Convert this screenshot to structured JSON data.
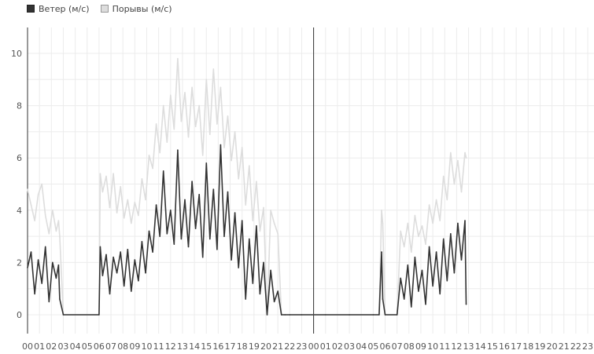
{
  "legend": {
    "wind": "Ветер (м/с)",
    "gusts": "Порывы (м/с)"
  },
  "colors": {
    "wind": "#333333",
    "gusts": "#dddddd",
    "grid": "#ececec",
    "axis": "#333333"
  },
  "chart_data": {
    "type": "line",
    "title": "",
    "xlabel": "",
    "ylabel": "",
    "ylim": [
      0,
      11
    ],
    "yticks": [
      0,
      2,
      4,
      6,
      8,
      10
    ],
    "x_tick_labels": [
      "00",
      "01",
      "02",
      "03",
      "04",
      "05",
      "06",
      "07",
      "08",
      "09",
      "10",
      "11",
      "12",
      "13",
      "14",
      "15",
      "16",
      "17",
      "18",
      "19",
      "20",
      "21",
      "22",
      "23",
      "00",
      "01",
      "02",
      "03",
      "04",
      "05",
      "06",
      "07",
      "08",
      "09",
      "10",
      "11",
      "12",
      "13",
      "14",
      "15",
      "16",
      "17",
      "18",
      "19",
      "20",
      "21",
      "22",
      "23"
    ],
    "x_unit": "hours from start of day 1",
    "grid": true,
    "legend_position": "top-left",
    "series": [
      {
        "name": "Ветер (м/с)",
        "x": [
          0,
          0.3,
          0.6,
          0.9,
          1.2,
          1.5,
          1.8,
          2.1,
          2.4,
          2.6,
          2.7,
          3.0,
          6.0,
          6.1,
          6.3,
          6.6,
          6.9,
          7.2,
          7.5,
          7.8,
          8.1,
          8.4,
          8.7,
          9.0,
          9.3,
          9.6,
          9.9,
          10.2,
          10.5,
          10.8,
          11.1,
          11.4,
          11.7,
          12.0,
          12.3,
          12.6,
          12.9,
          13.2,
          13.5,
          13.8,
          14.1,
          14.4,
          14.7,
          15.0,
          15.3,
          15.6,
          15.9,
          16.2,
          16.5,
          16.8,
          17.1,
          17.4,
          17.7,
          18.0,
          18.3,
          18.6,
          18.9,
          19.2,
          19.5,
          19.8,
          20.1,
          20.4,
          20.7,
          21.0,
          21.3,
          21.6,
          22.0,
          23.0,
          24.0,
          25.0,
          27.0,
          29.0,
          29.5,
          29.7,
          29.8,
          30.0,
          31.0,
          31.3,
          31.6,
          31.9,
          32.2,
          32.5,
          32.8,
          33.1,
          33.4,
          33.7,
          34.0,
          34.3,
          34.6,
          34.9,
          35.2,
          35.5,
          35.8,
          36.1,
          36.4,
          36.7,
          36.8
        ],
        "values": [
          1.8,
          2.4,
          0.8,
          2.1,
          1.2,
          2.6,
          0.5,
          2.0,
          1.4,
          1.9,
          0.6,
          0,
          0,
          2.6,
          1.5,
          2.3,
          0.8,
          2.2,
          1.6,
          2.4,
          1.1,
          2.5,
          0.9,
          2.1,
          1.3,
          2.8,
          1.6,
          3.2,
          2.4,
          4.2,
          3.0,
          5.5,
          3.1,
          4.0,
          2.7,
          6.3,
          2.9,
          4.4,
          2.6,
          5.1,
          3.3,
          4.6,
          2.2,
          5.8,
          2.9,
          4.8,
          2.5,
          6.5,
          3.0,
          4.7,
          2.1,
          3.9,
          1.8,
          3.6,
          0.6,
          2.9,
          1.2,
          3.4,
          0.8,
          2.0,
          0,
          1.7,
          0.5,
          0.9,
          0,
          0,
          0,
          0,
          0,
          0,
          0,
          0,
          0,
          2.4,
          0.6,
          0,
          0,
          1.4,
          0.6,
          1.9,
          0.3,
          2.2,
          0.9,
          1.7,
          0.4,
          2.6,
          1.1,
          2.4,
          0.8,
          2.9,
          1.3,
          3.1,
          1.6,
          3.5,
          2.1,
          3.6,
          0.4
        ]
      },
      {
        "name": "Порывы (м/с)",
        "x": [
          0,
          0.3,
          0.6,
          0.9,
          1.2,
          1.5,
          1.8,
          2.1,
          2.4,
          2.6,
          2.7,
          3.0,
          6.0,
          6.1,
          6.3,
          6.6,
          6.9,
          7.2,
          7.5,
          7.8,
          8.1,
          8.4,
          8.7,
          9.0,
          9.3,
          9.6,
          9.9,
          10.2,
          10.5,
          10.8,
          11.1,
          11.4,
          11.7,
          12.0,
          12.3,
          12.6,
          12.9,
          13.2,
          13.5,
          13.8,
          14.1,
          14.4,
          14.7,
          15.0,
          15.3,
          15.6,
          15.9,
          16.2,
          16.5,
          16.8,
          17.1,
          17.4,
          17.7,
          18.0,
          18.3,
          18.6,
          18.9,
          19.2,
          19.5,
          19.8,
          20.1,
          20.4,
          20.7,
          21.0,
          21.3,
          21.6,
          22.0,
          23.0,
          24.0,
          25.0,
          27.0,
          29.0,
          29.5,
          29.7,
          29.8,
          30.0,
          31.0,
          31.3,
          31.6,
          31.9,
          32.2,
          32.5,
          32.8,
          33.1,
          33.4,
          33.7,
          34.0,
          34.3,
          34.6,
          34.9,
          35.2,
          35.5,
          35.8,
          36.1,
          36.4,
          36.7,
          36.8
        ],
        "values": [
          4.8,
          4.2,
          3.6,
          4.6,
          5.0,
          3.8,
          3.1,
          4.0,
          3.2,
          3.6,
          3.0,
          0,
          0,
          5.4,
          4.7,
          5.3,
          4.1,
          5.4,
          3.9,
          4.9,
          3.7,
          4.4,
          3.5,
          4.3,
          3.8,
          5.2,
          4.4,
          6.1,
          5.6,
          7.3,
          6.2,
          8.0,
          6.6,
          8.4,
          7.1,
          9.8,
          7.4,
          8.5,
          6.8,
          8.7,
          7.2,
          8.0,
          6.1,
          9.0,
          6.9,
          9.4,
          7.3,
          8.7,
          6.4,
          7.6,
          5.9,
          7.0,
          5.2,
          6.4,
          4.2,
          5.7,
          3.6,
          5.1,
          3.2,
          4.1,
          0,
          4.0,
          3.5,
          3.1,
          0,
          0,
          0,
          0,
          0,
          0,
          0,
          0,
          0,
          4.0,
          3.5,
          0,
          0,
          3.2,
          2.6,
          3.5,
          2.4,
          3.8,
          3.0,
          3.4,
          2.7,
          4.2,
          3.5,
          4.4,
          3.6,
          5.3,
          4.4,
          6.2,
          5.0,
          5.9,
          4.7,
          6.2,
          6.0
        ]
      }
    ],
    "vertical_reference_x": 24
  }
}
